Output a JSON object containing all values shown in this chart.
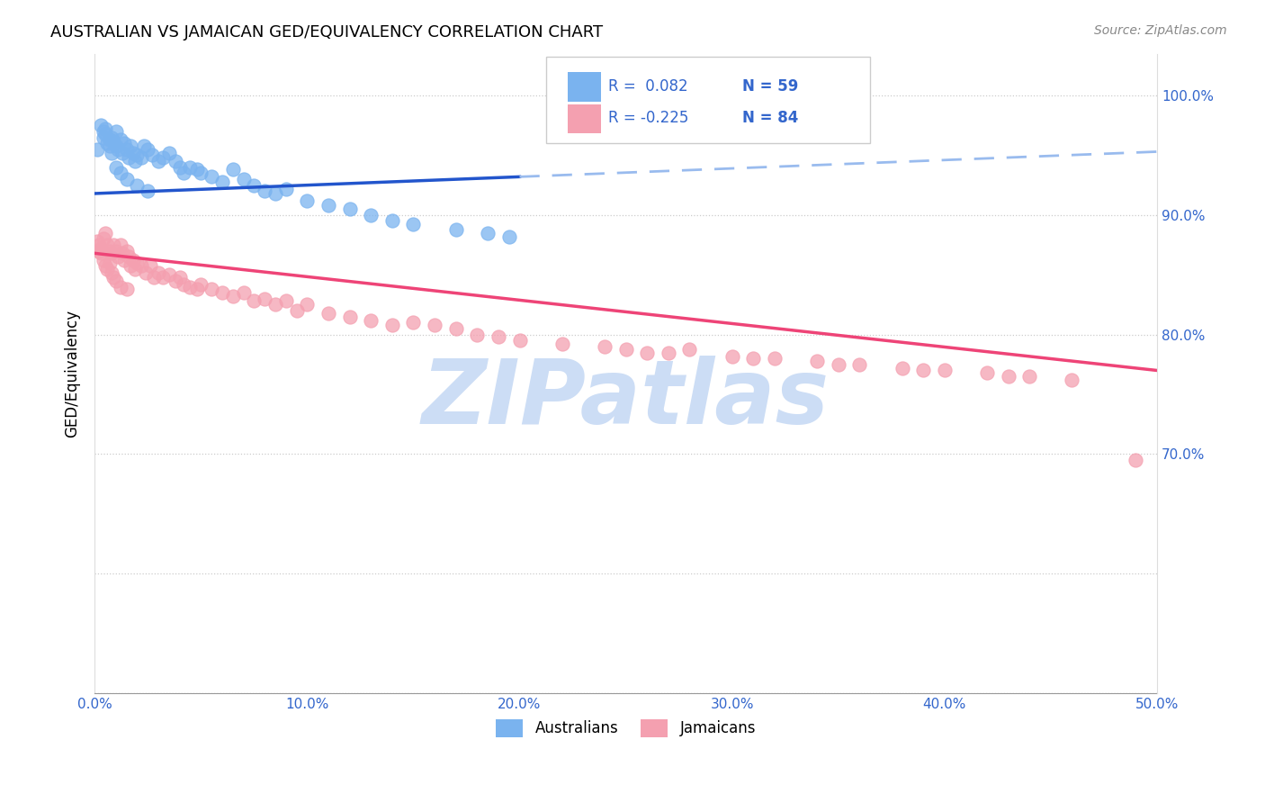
{
  "title": "AUSTRALIAN VS JAMAICAN GED/EQUIVALENCY CORRELATION CHART",
  "source": "Source: ZipAtlas.com",
  "ylabel": "GED/Equivalency",
  "xlim": [
    0.0,
    0.5
  ],
  "ylim": [
    0.5,
    1.035
  ],
  "xticks": [
    0.0,
    0.1,
    0.2,
    0.3,
    0.4,
    0.5
  ],
  "xticklabels": [
    "0.0%",
    "10.0%",
    "20.0%",
    "30.0%",
    "40.0%",
    "50.0%"
  ],
  "right_yticks": [
    0.7,
    0.8,
    0.9,
    1.0
  ],
  "right_yticklabels": [
    "70.0%",
    "80.0%",
    "90.0%",
    "100.0%"
  ],
  "color_australian": "#7ab3ef",
  "color_jamaican": "#f4a0b0",
  "color_trendline_aus_solid": "#2255cc",
  "color_trendline_aus_dashed": "#99bbee",
  "color_trendline_jam": "#ee4477",
  "watermark_color": "#ccddf5",
  "aus_x": [
    0.001,
    0.003,
    0.004,
    0.004,
    0.005,
    0.006,
    0.007,
    0.007,
    0.008,
    0.009,
    0.01,
    0.01,
    0.011,
    0.012,
    0.013,
    0.014,
    0.015,
    0.016,
    0.017,
    0.018,
    0.019,
    0.02,
    0.022,
    0.023,
    0.025,
    0.027,
    0.03,
    0.032,
    0.035,
    0.038,
    0.04,
    0.042,
    0.045,
    0.048,
    0.05,
    0.055,
    0.06,
    0.065,
    0.07,
    0.075,
    0.08,
    0.085,
    0.09,
    0.1,
    0.11,
    0.12,
    0.13,
    0.14,
    0.15,
    0.17,
    0.185,
    0.195,
    0.01,
    0.012,
    0.015,
    0.02,
    0.025,
    0.005,
    0.008
  ],
  "aus_y": [
    0.955,
    0.975,
    0.97,
    0.965,
    0.972,
    0.96,
    0.958,
    0.963,
    0.952,
    0.962,
    0.958,
    0.97,
    0.955,
    0.963,
    0.952,
    0.96,
    0.955,
    0.948,
    0.958,
    0.952,
    0.945,
    0.95,
    0.948,
    0.958,
    0.955,
    0.95,
    0.945,
    0.948,
    0.952,
    0.945,
    0.94,
    0.935,
    0.94,
    0.938,
    0.935,
    0.932,
    0.928,
    0.938,
    0.93,
    0.925,
    0.92,
    0.918,
    0.922,
    0.912,
    0.908,
    0.905,
    0.9,
    0.895,
    0.892,
    0.888,
    0.885,
    0.882,
    0.94,
    0.935,
    0.93,
    0.925,
    0.92,
    0.968,
    0.965
  ],
  "jam_x": [
    0.001,
    0.002,
    0.003,
    0.004,
    0.005,
    0.006,
    0.007,
    0.008,
    0.009,
    0.01,
    0.011,
    0.012,
    0.013,
    0.014,
    0.015,
    0.016,
    0.017,
    0.018,
    0.019,
    0.02,
    0.022,
    0.024,
    0.026,
    0.028,
    0.03,
    0.032,
    0.035,
    0.038,
    0.04,
    0.042,
    0.045,
    0.048,
    0.05,
    0.055,
    0.06,
    0.065,
    0.07,
    0.075,
    0.08,
    0.085,
    0.09,
    0.095,
    0.1,
    0.11,
    0.12,
    0.13,
    0.14,
    0.15,
    0.16,
    0.17,
    0.18,
    0.19,
    0.2,
    0.22,
    0.24,
    0.26,
    0.28,
    0.3,
    0.32,
    0.34,
    0.36,
    0.38,
    0.4,
    0.42,
    0.44,
    0.46,
    0.25,
    0.27,
    0.31,
    0.35,
    0.39,
    0.43,
    0.002,
    0.003,
    0.004,
    0.005,
    0.006,
    0.007,
    0.008,
    0.009,
    0.01,
    0.012,
    0.015,
    0.49
  ],
  "jam_y": [
    0.878,
    0.875,
    0.872,
    0.88,
    0.885,
    0.875,
    0.87,
    0.868,
    0.875,
    0.87,
    0.865,
    0.875,
    0.868,
    0.862,
    0.87,
    0.865,
    0.858,
    0.862,
    0.855,
    0.86,
    0.858,
    0.852,
    0.858,
    0.848,
    0.852,
    0.848,
    0.85,
    0.845,
    0.848,
    0.842,
    0.84,
    0.838,
    0.842,
    0.838,
    0.835,
    0.832,
    0.835,
    0.828,
    0.83,
    0.825,
    0.828,
    0.82,
    0.825,
    0.818,
    0.815,
    0.812,
    0.808,
    0.81,
    0.808,
    0.805,
    0.8,
    0.798,
    0.795,
    0.792,
    0.79,
    0.785,
    0.788,
    0.782,
    0.78,
    0.778,
    0.775,
    0.772,
    0.77,
    0.768,
    0.765,
    0.762,
    0.788,
    0.785,
    0.78,
    0.775,
    0.77,
    0.765,
    0.87,
    0.868,
    0.862,
    0.858,
    0.855,
    0.86,
    0.852,
    0.848,
    0.845,
    0.84,
    0.838,
    0.695
  ],
  "aus_trendline_x0": 0.0,
  "aus_trendline_y0": 0.918,
  "aus_trendline_x1": 0.2,
  "aus_trendline_y1": 0.932,
  "aus_trendline_ext_x0": 0.2,
  "aus_trendline_ext_y0": 0.932,
  "aus_trendline_ext_x1": 0.5,
  "aus_trendline_ext_y1": 0.953,
  "jam_trendline_x0": 0.0,
  "jam_trendline_y0": 0.868,
  "jam_trendline_x1": 0.5,
  "jam_trendline_y1": 0.77
}
